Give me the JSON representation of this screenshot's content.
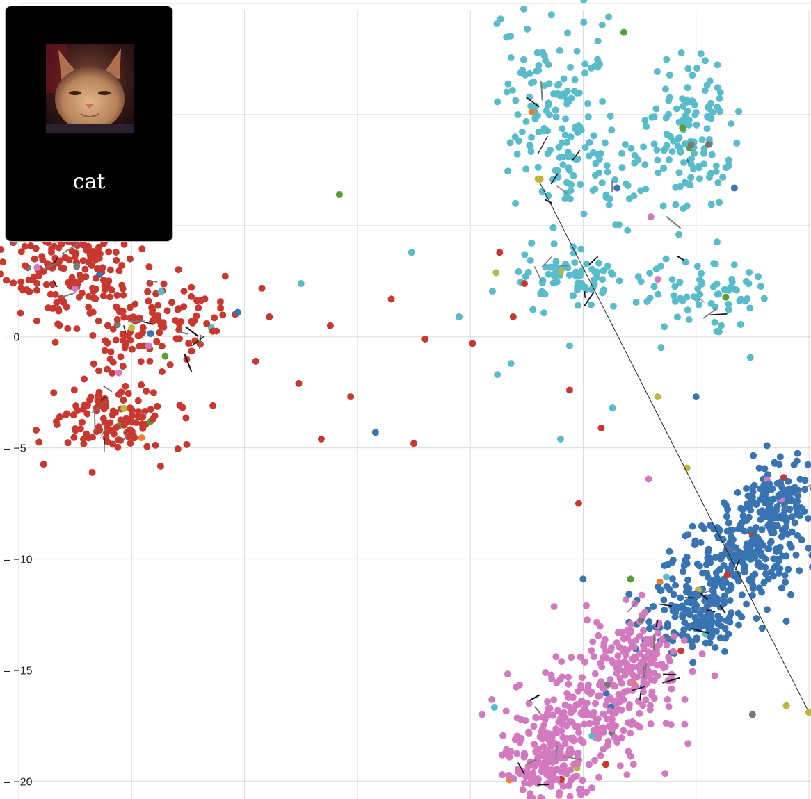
{
  "tooltip": {
    "label": "cat",
    "image_icon": "cat-photo-thumbnail"
  },
  "chart_data": {
    "type": "scatter",
    "title": "",
    "xlabel": "",
    "ylabel": "",
    "xlim": [
      -5,
      30
    ],
    "ylim": [
      -20.8,
      15
    ],
    "grid": true,
    "x_gridlines": [
      -5,
      0,
      5,
      10,
      15,
      20,
      25,
      30
    ],
    "y_ticks": [
      0,
      -5,
      -10,
      -15,
      -20
    ],
    "y_tick_labels": [
      "– 0",
      "– −5",
      "– −10",
      "– −15",
      "– −20"
    ],
    "clusters": [
      {
        "color": "#c9382f",
        "n": 430,
        "blobs": [
          {
            "cx": -3,
            "cy": 3.5,
            "sx": 1.7,
            "sy": 1.6,
            "w": 0.42
          },
          {
            "cx": 0.5,
            "cy": 0.6,
            "sx": 2.2,
            "sy": 1.3,
            "w": 0.3
          },
          {
            "cx": -1,
            "cy": -3.7,
            "sx": 1.6,
            "sy": 1.0,
            "w": 0.28
          }
        ]
      },
      {
        "color": "#58bccb",
        "n": 460,
        "blobs": [
          {
            "cx": 18.7,
            "cy": 10.5,
            "sx": 1.5,
            "sy": 2.4,
            "w": 0.28
          },
          {
            "cx": 24.6,
            "cy": 9.0,
            "sx": 1.2,
            "sy": 2.0,
            "w": 0.28
          },
          {
            "cx": 20.5,
            "cy": 7.2,
            "sx": 1.6,
            "sy": 1.2,
            "w": 0.12
          },
          {
            "cx": 19.5,
            "cy": 2.6,
            "sx": 1.4,
            "sy": 0.9,
            "w": 0.16
          },
          {
            "cx": 25.2,
            "cy": 2.0,
            "sx": 1.6,
            "sy": 1.1,
            "w": 0.16
          }
        ]
      },
      {
        "color": "#3874b2",
        "n": 520,
        "blobs": [
          {
            "cx": 28.5,
            "cy": -7.5,
            "sx": 1.1,
            "sy": 1.2,
            "w": 0.33
          },
          {
            "cx": 26.8,
            "cy": -10.0,
            "sx": 1.6,
            "sy": 1.1,
            "w": 0.37
          },
          {
            "cx": 25.0,
            "cy": -12.5,
            "sx": 1.4,
            "sy": 1.1,
            "w": 0.3
          }
        ]
      },
      {
        "color": "#d379bf",
        "n": 520,
        "blobs": [
          {
            "cx": 22.5,
            "cy": -14.5,
            "sx": 1.4,
            "sy": 1.4,
            "w": 0.32
          },
          {
            "cx": 20.0,
            "cy": -17.0,
            "sx": 2.0,
            "sy": 1.3,
            "w": 0.4
          },
          {
            "cx": 18.5,
            "cy": -19.3,
            "sx": 1.3,
            "sy": 0.9,
            "w": 0.28
          }
        ]
      }
    ],
    "scattered_points": [
      {
        "x": 13,
        "y": -0.1,
        "c": "#c9382f"
      },
      {
        "x": 11.5,
        "y": 1.7,
        "c": "#c9382f"
      },
      {
        "x": 14.5,
        "y": 0.9,
        "c": "#c9382f"
      },
      {
        "x": 12.5,
        "y": -4.8,
        "c": "#c9382f"
      },
      {
        "x": 9.7,
        "y": -2.7,
        "c": "#c9382f"
      },
      {
        "x": 8.4,
        "y": -4.6,
        "c": "#c9382f"
      },
      {
        "x": 7.4,
        "y": -2.1,
        "c": "#c9382f"
      },
      {
        "x": 5.5,
        "y": -1.1,
        "c": "#c9382f"
      },
      {
        "x": 3.6,
        "y": -3.1,
        "c": "#c9382f"
      },
      {
        "x": 8.8,
        "y": 0.5,
        "c": "#c9382f"
      },
      {
        "x": 6.1,
        "y": 0.9,
        "c": "#c9382f"
      },
      {
        "x": 15.1,
        "y": -0.3,
        "c": "#c9382f"
      },
      {
        "x": 16.9,
        "y": 0.9,
        "c": "#c9382f"
      },
      {
        "x": 17.4,
        "y": 2.4,
        "c": "#c9382f"
      },
      {
        "x": 19.4,
        "y": -2.4,
        "c": "#c9382f"
      },
      {
        "x": 20.8,
        "y": -4.1,
        "c": "#c9382f"
      },
      {
        "x": 19.8,
        "y": -7.5,
        "c": "#c9382f"
      },
      {
        "x": 16.3,
        "y": 3.8,
        "c": "#c9382f"
      },
      {
        "x": 4.7,
        "y": 1.1,
        "c": "#3874b2"
      },
      {
        "x": 7.5,
        "y": 2.4,
        "c": "#58bccb"
      },
      {
        "x": 12.4,
        "y": 3.8,
        "c": "#58bccb"
      },
      {
        "x": 14.5,
        "y": 0.9,
        "c": "#58bccb"
      },
      {
        "x": 16.2,
        "y": -1.7,
        "c": "#58bccb"
      },
      {
        "x": 16.8,
        "y": -1.2,
        "c": "#58bccb"
      },
      {
        "x": 19.4,
        "y": -0.4,
        "c": "#58bccb"
      },
      {
        "x": 21.3,
        "y": -3.2,
        "c": "#58bccb"
      },
      {
        "x": 19.0,
        "y": -4.6,
        "c": "#58bccb"
      },
      {
        "x": 17.0,
        "y": 6.0,
        "c": "#58bccb"
      },
      {
        "x": 10.8,
        "y": -4.3,
        "c": "#3874b2"
      },
      {
        "x": 21.5,
        "y": 6.7,
        "c": "#3874b2"
      },
      {
        "x": 26.7,
        "y": 6.7,
        "c": "#3874b2"
      },
      {
        "x": 25.0,
        "y": -2.7,
        "c": "#3874b2"
      },
      {
        "x": 20.0,
        "y": -10.9,
        "c": "#3874b2"
      },
      {
        "x": 29.0,
        "y": -12.8,
        "c": "#3874b2"
      },
      {
        "x": 9.2,
        "y": 6.4,
        "c": "#55a02f"
      },
      {
        "x": 21.8,
        "y": 13.7,
        "c": "#55a02f"
      },
      {
        "x": 24.4,
        "y": 9.4,
        "c": "#55a02f"
      },
      {
        "x": 22.1,
        "y": -10.9,
        "c": "#55a02f"
      },
      {
        "x": 23.0,
        "y": 5.4,
        "c": "#d379bf"
      },
      {
        "x": 22.9,
        "y": -6.4,
        "c": "#d379bf"
      },
      {
        "x": 27.5,
        "y": -17.0,
        "c": "#777777"
      },
      {
        "x": 24.6,
        "y": -5.9,
        "c": "#bcb73a"
      },
      {
        "x": 23.3,
        "y": -2.7,
        "c": "#bcb73a"
      },
      {
        "x": 29.0,
        "y": -16.6,
        "c": "#bcb73a"
      },
      {
        "x": 0.0,
        "y": 0.4,
        "c": "#bcb73a"
      },
      {
        "x": 18.1,
        "y": 7.1,
        "c": "#bcb73a"
      }
    ],
    "trajectory_line": {
      "from": [
        18.0,
        7.1
      ],
      "to": [
        30.0,
        -16.9
      ]
    }
  }
}
